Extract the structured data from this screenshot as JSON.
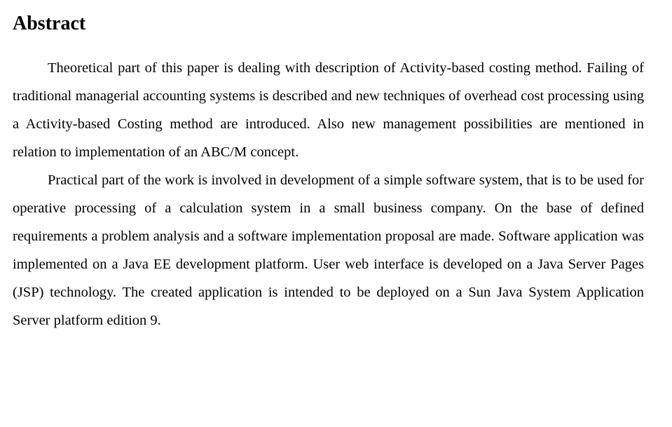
{
  "document": {
    "heading": "Abstract",
    "paragraphs": [
      "Theoretical part of this paper is dealing with description of Activity-based costing method. Failing of traditional managerial accounting systems is described and new techniques of overhead cost processing using a Activity-based Costing method are introduced. Also new management possibilities are mentioned in relation to implementation of an ABC/M concept.",
      "Practical part of the work is involved in development of a simple software system, that is to be used for operative processing of a calculation system in a small business company. On the base of defined requirements a problem analysis and a software implementation proposal are made. Software application was implemented on a Java EE development platform. User web interface is developed on a Java Server Pages (JSP) technology. The created application is intended to be deployed on a Sun Java System Application Server platform edition 9."
    ],
    "colors": {
      "background": "#ffffff",
      "text": "#000000"
    },
    "typography": {
      "heading_fontsize": 28,
      "heading_weight": "bold",
      "body_fontsize": 20.5,
      "body_lineheight": 1.95,
      "font_family": "Times New Roman",
      "text_indent": 50,
      "text_align": "justify"
    }
  }
}
